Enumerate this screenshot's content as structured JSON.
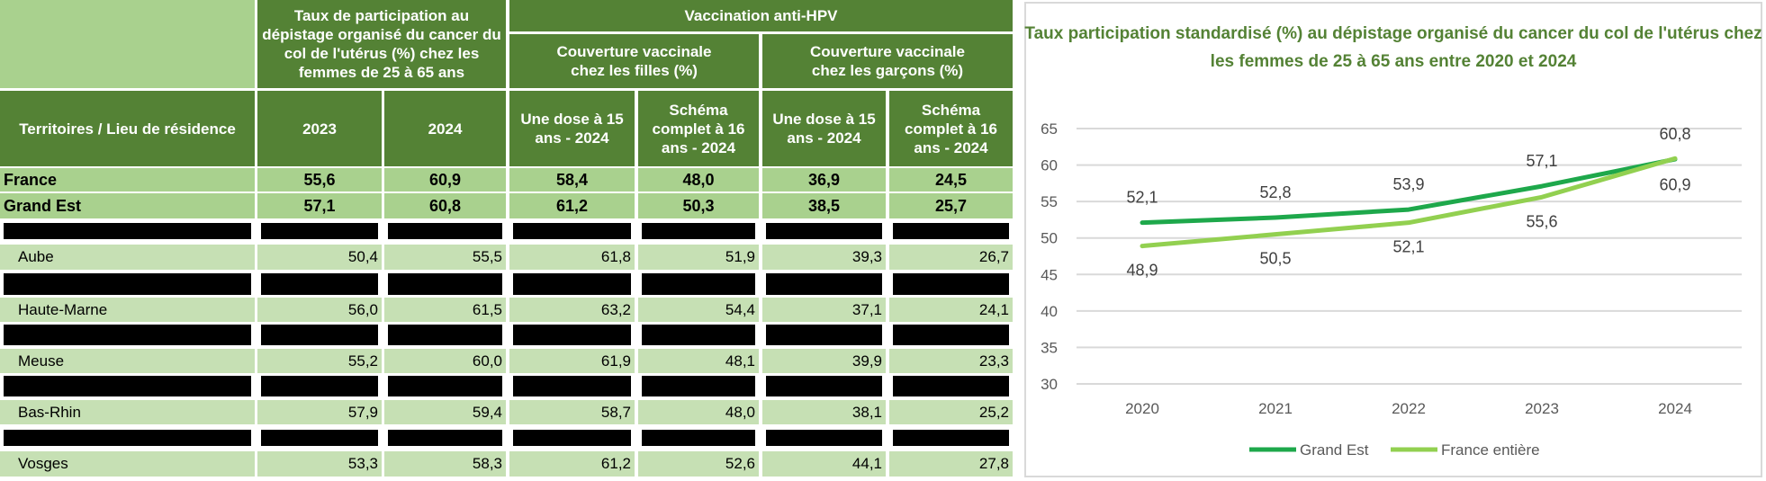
{
  "table": {
    "header": {
      "territory": "Territoires / Lieu de résidence",
      "screening_group": "Taux de participation au dépistage organisé du cancer du col de l'utérus (%) chez les femmes de 25 à 65 ans",
      "hpv_group": "Vaccination anti-HPV",
      "girls_group": "Couverture vaccinale chez les filles (%)",
      "boys_group": "Couverture vaccinale chez les garçons (%)",
      "cols": [
        "2023",
        "2024",
        "Une dose à 15 ans - 2024",
        "Schéma complet à 16 ans - 2024",
        "Une dose à 15 ans - 2024",
        "Schéma complet à 16 ans - 2024"
      ]
    },
    "rows": [
      {
        "name": "France",
        "values": [
          "55,6",
          "60,9",
          "58,4",
          "48,0",
          "36,9",
          "24,5"
        ],
        "emphasis": true
      },
      {
        "name": "Grand Est",
        "values": [
          "57,1",
          "60,8",
          "61,2",
          "50,3",
          "38,5",
          "25,7"
        ],
        "emphasis": true
      },
      {
        "redacted": true
      },
      {
        "name": "Aube",
        "values": [
          "50,4",
          "55,5",
          "61,8",
          "51,9",
          "39,3",
          "26,7"
        ]
      },
      {
        "redacted": true
      },
      {
        "name": "Haute-Marne",
        "values": [
          "56,0",
          "61,5",
          "63,2",
          "54,4",
          "37,1",
          "24,1"
        ]
      },
      {
        "redacted": true
      },
      {
        "name": "Meuse",
        "values": [
          "55,2",
          "60,0",
          "61,9",
          "48,1",
          "39,9",
          "23,3"
        ]
      },
      {
        "redacted": true
      },
      {
        "name": "Bas-Rhin",
        "values": [
          "57,9",
          "59,4",
          "58,7",
          "48,0",
          "38,1",
          "25,2"
        ]
      },
      {
        "redacted": true
      },
      {
        "name": "Vosges",
        "values": [
          "53,3",
          "58,3",
          "61,2",
          "52,6",
          "44,1",
          "27,8"
        ]
      }
    ]
  },
  "chart_data": {
    "type": "line",
    "title": "Taux participation standardisé (%) au dépistage organisé du cancer du col de l'utérus chez les femmes de 25 à 65 ans entre 2020 et 2024",
    "categories": [
      "2020",
      "2021",
      "2022",
      "2023",
      "2024"
    ],
    "series": [
      {
        "name": "Grand Est",
        "values": [
          52.1,
          52.8,
          53.9,
          57.1,
          60.8
        ],
        "labels": [
          "52,1",
          "52,8",
          "53,9",
          "57,1",
          "60,8"
        ],
        "color": "#1ea84b"
      },
      {
        "name": "France entière",
        "values": [
          48.9,
          50.5,
          52.1,
          55.6,
          60.9
        ],
        "labels": [
          "48,9",
          "50,5",
          "52,1",
          "55,6",
          "60,9"
        ],
        "color": "#92d050"
      }
    ],
    "yticks": [
      "30",
      "35",
      "40",
      "45",
      "50",
      "55",
      "60",
      "65"
    ],
    "ylim": [
      30,
      65
    ],
    "grid": true,
    "legend": "bottom"
  }
}
